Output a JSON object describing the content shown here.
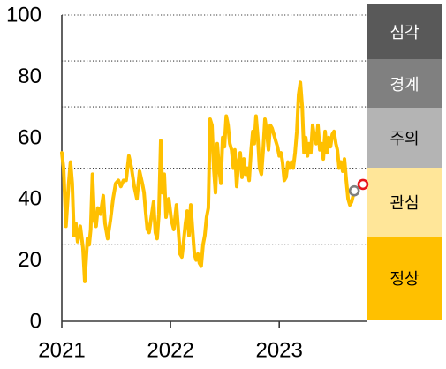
{
  "chart_data": {
    "type": "line",
    "x_type": "date",
    "xlim": [
      "2021-01-01",
      "2023-10-21"
    ],
    "ylim": [
      0,
      100
    ],
    "yticks": [
      0,
      20,
      40,
      60,
      80,
      100
    ],
    "xticks": [
      {
        "date": "2021-01-01",
        "label": "2021"
      },
      {
        "date": "2022-01-01",
        "label": "2022"
      },
      {
        "date": "2023-01-01",
        "label": "2023"
      }
    ],
    "grid": "on",
    "grid_style": "dotted",
    "gridlines": [
      25,
      50,
      70,
      85,
      100
    ],
    "series": [
      {
        "color": "#ffc000",
        "points": [
          [
            "2021-01-01",
            55
          ],
          [
            "2021-01-07",
            50
          ],
          [
            "2021-01-15",
            31
          ],
          [
            "2021-01-24",
            45
          ],
          [
            "2021-01-30",
            52
          ],
          [
            "2021-02-05",
            45
          ],
          [
            "2021-02-11",
            28
          ],
          [
            "2021-02-17",
            32
          ],
          [
            "2021-02-23",
            26
          ],
          [
            "2021-03-04",
            31
          ],
          [
            "2021-03-13",
            24
          ],
          [
            "2021-03-19",
            13
          ],
          [
            "2021-03-28",
            27
          ],
          [
            "2021-04-03",
            25
          ],
          [
            "2021-04-08",
            30
          ],
          [
            "2021-04-14",
            48
          ],
          [
            "2021-04-20",
            33
          ],
          [
            "2021-04-26",
            31
          ],
          [
            "2021-05-02",
            37
          ],
          [
            "2021-05-11",
            35
          ],
          [
            "2021-05-20",
            41
          ],
          [
            "2021-05-26",
            32
          ],
          [
            "2021-06-04",
            27
          ],
          [
            "2021-06-13",
            33
          ],
          [
            "2021-06-22",
            40
          ],
          [
            "2021-07-01",
            45
          ],
          [
            "2021-07-10",
            46
          ],
          [
            "2021-07-18",
            44
          ],
          [
            "2021-07-27",
            46
          ],
          [
            "2021-08-05",
            46
          ],
          [
            "2021-08-14",
            54
          ],
          [
            "2021-08-23",
            50
          ],
          [
            "2021-09-01",
            44
          ],
          [
            "2021-09-10",
            40
          ],
          [
            "2021-09-19",
            49
          ],
          [
            "2021-09-28",
            45
          ],
          [
            "2021-10-04",
            42
          ],
          [
            "2021-10-09",
            36
          ],
          [
            "2021-10-15",
            30
          ],
          [
            "2021-10-21",
            29
          ],
          [
            "2021-10-27",
            33
          ],
          [
            "2021-11-05",
            39
          ],
          [
            "2021-11-11",
            29
          ],
          [
            "2021-11-17",
            27
          ],
          [
            "2021-11-23",
            35
          ],
          [
            "2021-11-29",
            59
          ],
          [
            "2021-12-05",
            42
          ],
          [
            "2021-12-11",
            48
          ],
          [
            "2021-12-17",
            34
          ],
          [
            "2021-12-26",
            40
          ],
          [
            "2022-01-04",
            33
          ],
          [
            "2022-01-12",
            30
          ],
          [
            "2022-01-21",
            38
          ],
          [
            "2022-01-27",
            30
          ],
          [
            "2022-02-02",
            22
          ],
          [
            "2022-02-08",
            21
          ],
          [
            "2022-02-14",
            26
          ],
          [
            "2022-02-20",
            32
          ],
          [
            "2022-02-26",
            36
          ],
          [
            "2022-03-04",
            28
          ],
          [
            "2022-03-10",
            38
          ],
          [
            "2022-03-16",
            30
          ],
          [
            "2022-03-22",
            22
          ],
          [
            "2022-03-28",
            20
          ],
          [
            "2022-04-03",
            22
          ],
          [
            "2022-04-08",
            19
          ],
          [
            "2022-04-14",
            18
          ],
          [
            "2022-04-20",
            25
          ],
          [
            "2022-04-26",
            28
          ],
          [
            "2022-05-02",
            34
          ],
          [
            "2022-05-08",
            37
          ],
          [
            "2022-05-14",
            66
          ],
          [
            "2022-05-20",
            64
          ],
          [
            "2022-05-26",
            50
          ],
          [
            "2022-06-01",
            42
          ],
          [
            "2022-06-07",
            58
          ],
          [
            "2022-06-13",
            50
          ],
          [
            "2022-06-19",
            45
          ],
          [
            "2022-06-25",
            60
          ],
          [
            "2022-07-01",
            57
          ],
          [
            "2022-07-07",
            67
          ],
          [
            "2022-07-13",
            64
          ],
          [
            "2022-07-19",
            58
          ],
          [
            "2022-07-25",
            56
          ],
          [
            "2022-07-31",
            50
          ],
          [
            "2022-08-05",
            56
          ],
          [
            "2022-08-11",
            44
          ],
          [
            "2022-08-17",
            52
          ],
          [
            "2022-08-23",
            55
          ],
          [
            "2022-08-29",
            47
          ],
          [
            "2022-09-04",
            53
          ],
          [
            "2022-09-10",
            48
          ],
          [
            "2022-09-16",
            50
          ],
          [
            "2022-09-22",
            46
          ],
          [
            "2022-09-28",
            55
          ],
          [
            "2022-10-04",
            62
          ],
          [
            "2022-10-09",
            58
          ],
          [
            "2022-10-15",
            67
          ],
          [
            "2022-10-21",
            60
          ],
          [
            "2022-10-27",
            50
          ],
          [
            "2022-11-02",
            48
          ],
          [
            "2022-11-08",
            56
          ],
          [
            "2022-11-14",
            66
          ],
          [
            "2022-11-20",
            62
          ],
          [
            "2022-11-26",
            56
          ],
          [
            "2022-12-02",
            64
          ],
          [
            "2022-12-08",
            63
          ],
          [
            "2022-12-14",
            61
          ],
          [
            "2022-12-20",
            59
          ],
          [
            "2022-12-26",
            57
          ],
          [
            "2023-01-01",
            54
          ],
          [
            "2023-01-07",
            55
          ],
          [
            "2023-01-12",
            52
          ],
          [
            "2023-01-18",
            46
          ],
          [
            "2023-01-24",
            47
          ],
          [
            "2023-01-30",
            52
          ],
          [
            "2023-02-05",
            50
          ],
          [
            "2023-02-11",
            52
          ],
          [
            "2023-02-17",
            50
          ],
          [
            "2023-02-23",
            55
          ],
          [
            "2023-03-01",
            62
          ],
          [
            "2023-03-07",
            74
          ],
          [
            "2023-03-13",
            78
          ],
          [
            "2023-03-19",
            70
          ],
          [
            "2023-03-25",
            55
          ],
          [
            "2023-03-31",
            60
          ],
          [
            "2023-04-06",
            54
          ],
          [
            "2023-04-11",
            58
          ],
          [
            "2023-04-17",
            55
          ],
          [
            "2023-04-23",
            64
          ],
          [
            "2023-04-29",
            60
          ],
          [
            "2023-05-05",
            58
          ],
          [
            "2023-05-11",
            64
          ],
          [
            "2023-05-17",
            56
          ],
          [
            "2023-05-23",
            58
          ],
          [
            "2023-05-29",
            53
          ],
          [
            "2023-06-04",
            62
          ],
          [
            "2023-06-10",
            55
          ],
          [
            "2023-06-16",
            60
          ],
          [
            "2023-06-22",
            57
          ],
          [
            "2023-06-28",
            61
          ],
          [
            "2023-07-04",
            62
          ],
          [
            "2023-07-10",
            58
          ],
          [
            "2023-07-15",
            56
          ],
          [
            "2023-07-21",
            50
          ],
          [
            "2023-07-27",
            52
          ],
          [
            "2023-08-02",
            49
          ],
          [
            "2023-08-08",
            53
          ],
          [
            "2023-08-14",
            46
          ],
          [
            "2023-08-20",
            40
          ],
          [
            "2023-08-26",
            38
          ],
          [
            "2023-09-01",
            39
          ],
          [
            "2023-09-10",
            42.6
          ]
        ]
      }
    ],
    "markers": [
      {
        "date": "2023-09-10",
        "value": 42.6,
        "color": "#7f7f7f"
      },
      {
        "date": "2023-10-09",
        "value": 44.7,
        "color": "#e8141a"
      }
    ],
    "zones_placement": "right",
    "zones": [
      {
        "label": "심각",
        "color": "#595959",
        "text_color": "#ffffff"
      },
      {
        "label": "경계",
        "color": "#808080",
        "text_color": "#ffffff"
      },
      {
        "label": "주의",
        "color": "#b4b4b4",
        "text_color": "#000000"
      },
      {
        "label": "관심",
        "color": "#ffe699",
        "text_color": "#000000"
      },
      {
        "label": "정상",
        "color": "#ffc000",
        "text_color": "#000000"
      }
    ]
  }
}
